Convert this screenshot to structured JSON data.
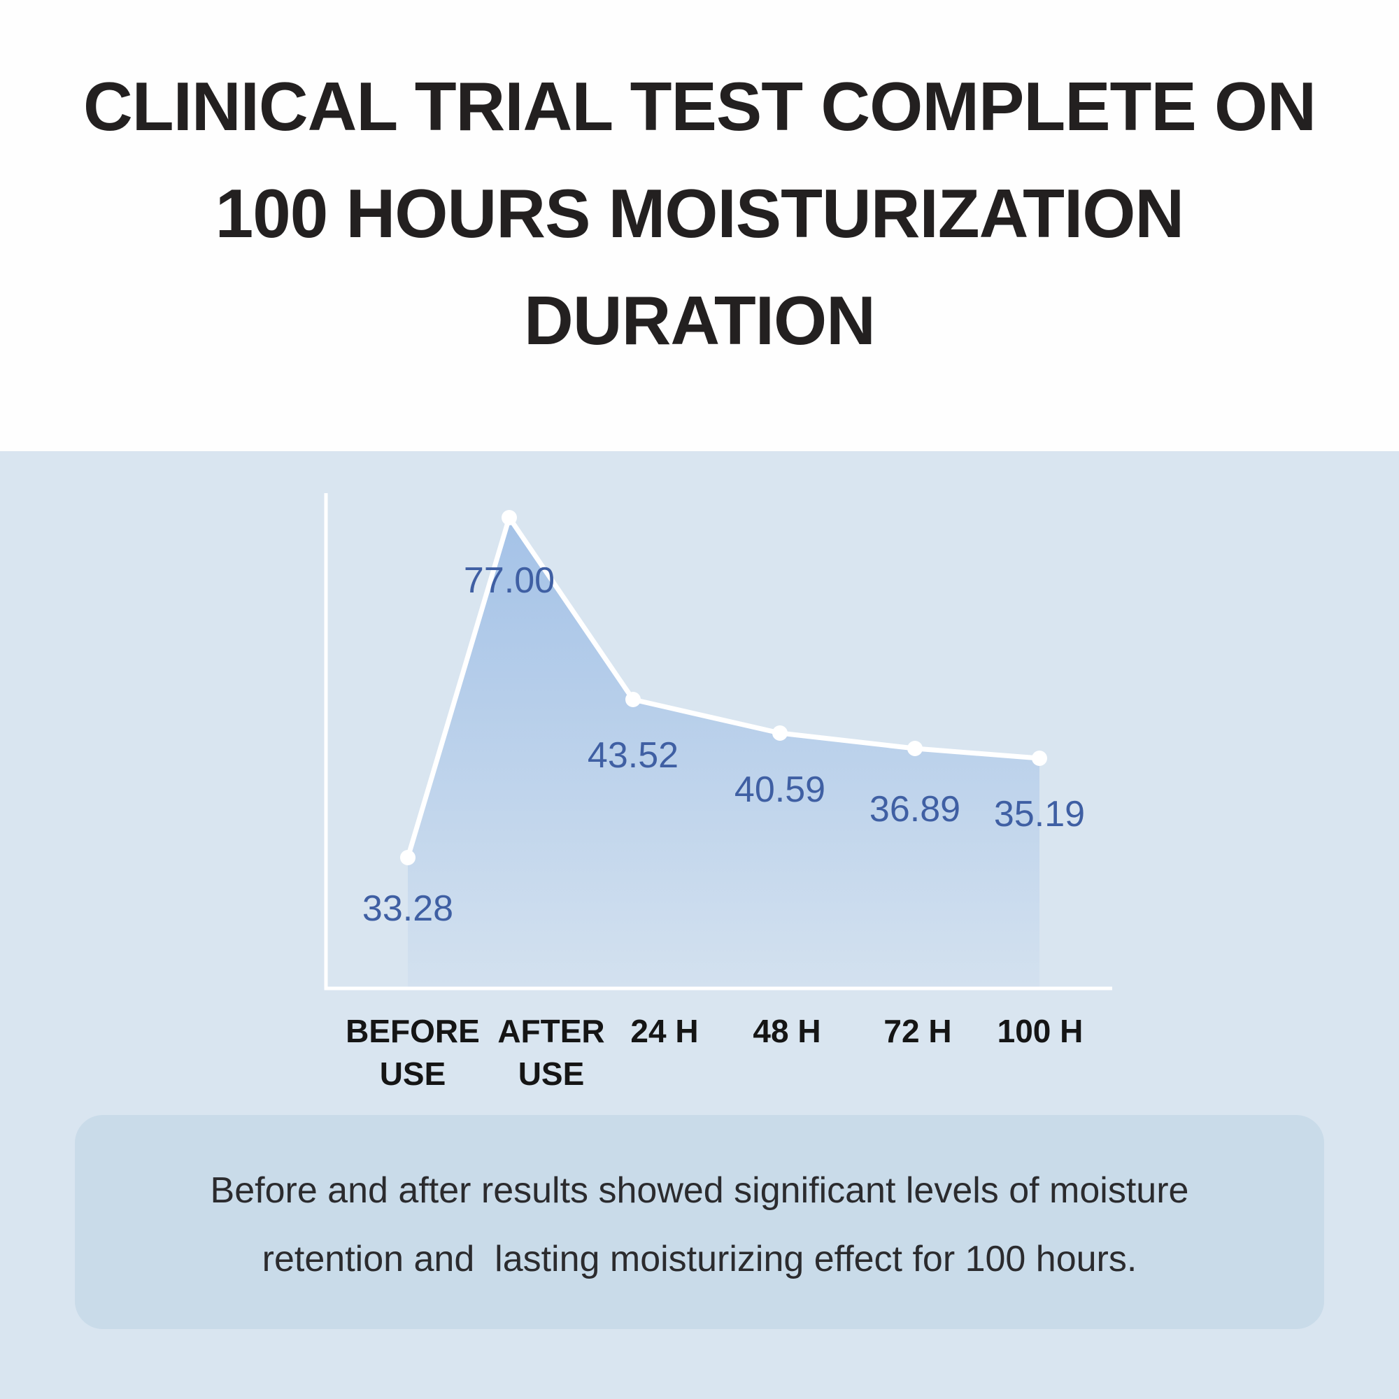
{
  "page": {
    "title_lines": [
      "CLINICAL TRIAL TEST COMPLETE ON",
      "100 HOURS MOISTURIZATION",
      "DURATION"
    ]
  },
  "chart_data": {
    "type": "area",
    "title": "",
    "xlabel": "",
    "ylabel": "",
    "categories": [
      "BEFORE USE",
      "AFTER USE",
      "24 H",
      "48 H",
      "72 H",
      "100 H"
    ],
    "category_lines": [
      [
        "BEFORE",
        "USE"
      ],
      [
        "AFTER",
        "USE"
      ],
      [
        "24 H"
      ],
      [
        "48 H"
      ],
      [
        "72 H"
      ],
      [
        "100 H"
      ]
    ],
    "values": [
      33.28,
      77.0,
      43.52,
      40.59,
      36.89,
      35.19
    ],
    "value_labels": [
      "33.28",
      "77.00",
      "43.52",
      "40.59",
      "36.89",
      "35.19"
    ],
    "grid": false,
    "legend": "none",
    "y_ticks": [],
    "line_color": "#ffffff",
    "marker_color": "#ffffff",
    "axis_color": "#ffffff",
    "label_color": "#3f5fa3",
    "area_gradient_top": "#a4c2e7",
    "area_gradient_bottom": "#d3e1ef"
  },
  "description": {
    "lines": [
      "Before and after results showed significant levels of moisture",
      "retention and  lasting moisturizing effect for 100 hours."
    ]
  },
  "colors": {
    "header_bg": "#fefefe",
    "section_bg": "#d9e5f0",
    "box_bg": "#c9dbe9",
    "title_color": "#232020",
    "tick_color": "#151515",
    "desc_color": "#2b2b2e"
  }
}
